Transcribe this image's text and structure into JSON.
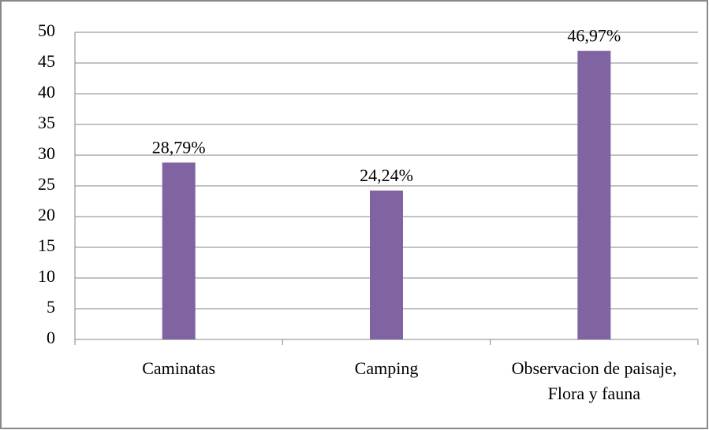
{
  "chart_data": {
    "type": "bar",
    "categories": [
      "Caminatas",
      "Camping",
      "Observacion de paisaje, Flora y fauna"
    ],
    "values": [
      28.79,
      24.24,
      46.97
    ],
    "value_labels": [
      "28,79%",
      "24,24%",
      "46,97%"
    ],
    "color": "#8064a2",
    "ylim": [
      0,
      50
    ],
    "yticks": [
      0,
      5,
      10,
      15,
      20,
      25,
      30,
      35,
      40,
      45,
      50
    ],
    "grid": true
  }
}
